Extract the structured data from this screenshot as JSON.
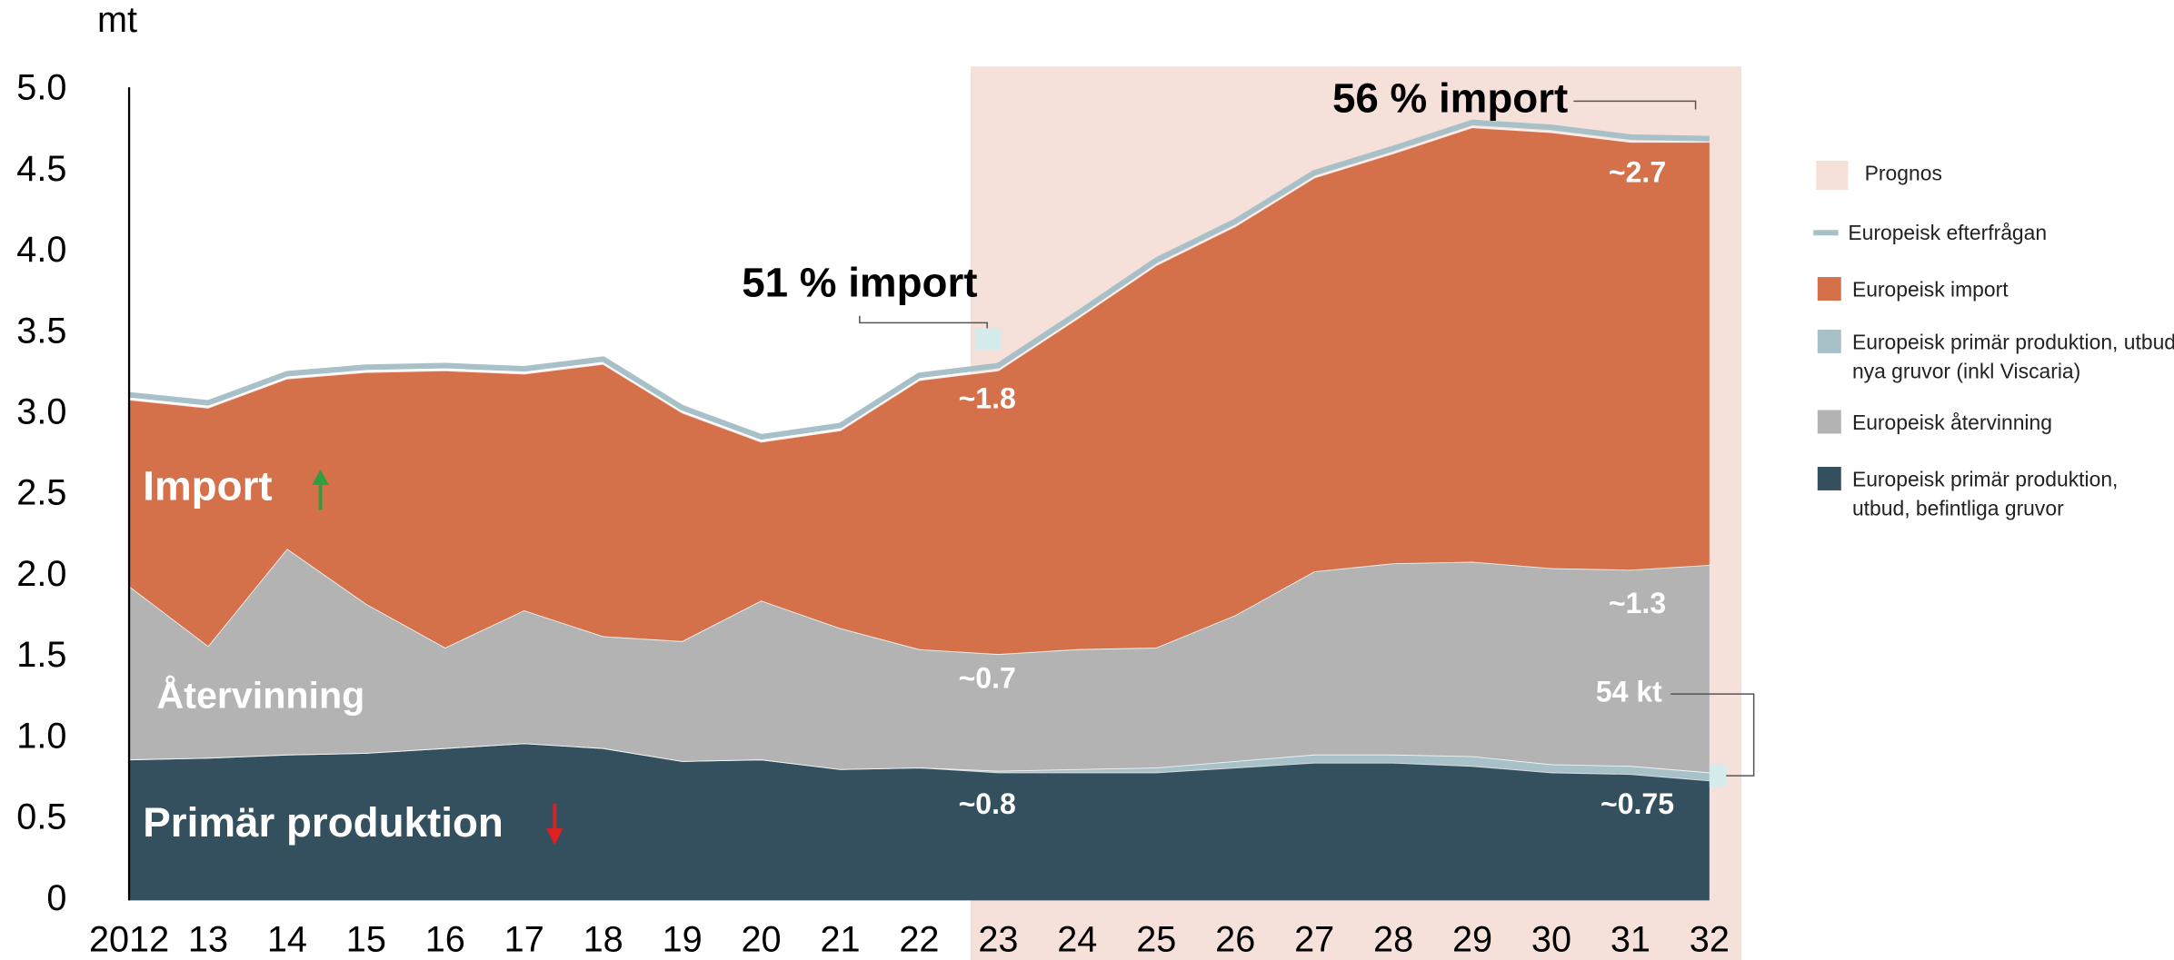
{
  "chart_data": {
    "type": "area",
    "y_label": "mt",
    "categories": [
      "2012",
      "13",
      "14",
      "15",
      "16",
      "17",
      "18",
      "19",
      "20",
      "21",
      "22",
      "23",
      "24",
      "25",
      "26",
      "27",
      "28",
      "29",
      "30",
      "31",
      "32"
    ],
    "ylim": [
      0,
      5.0
    ],
    "yticks": [
      0,
      0.5,
      {
        "value": 1.0,
        "label": "1.0"
      },
      1.5,
      {
        "value": 2.0,
        "label": "2.0"
      },
      2.5,
      {
        "value": 3.0,
        "label": "3.0"
      },
      3.5,
      {
        "value": 4.0,
        "label": "4.0"
      },
      4.5,
      {
        "value": 5.0,
        "label": "5.0"
      }
    ],
    "forecast_label": "Prognos",
    "forecast_color": "#f6e0da",
    "forecast_from": "23",
    "series": [
      {
        "name": "Europeisk primär produktion, utbud, befintliga gruvor",
        "color": "#34505e",
        "values": [
          0.87,
          0.88,
          0.9,
          0.91,
          0.94,
          0.97,
          0.94,
          0.86,
          0.87,
          0.81,
          0.82,
          0.79,
          0.79,
          0.79,
          0.82,
          0.85,
          0.85,
          0.83,
          0.79,
          0.78,
          0.74
        ]
      },
      {
        "name": "Europeisk primär produktion, utbud,  nya gruvor (inkl Viscaria)",
        "color": "#a8c0c8",
        "values": [
          0,
          0,
          0,
          0,
          0,
          0,
          0,
          0,
          0,
          0,
          0,
          0.01,
          0.02,
          0.03,
          0.04,
          0.05,
          0.05,
          0.06,
          0.05,
          0.05,
          0.05
        ]
      },
      {
        "name": "Europeisk återvinning",
        "color": "#b3b3b3",
        "values": [
          1.07,
          0.69,
          1.27,
          0.92,
          0.62,
          0.82,
          0.69,
          0.74,
          0.98,
          0.87,
          0.73,
          0.72,
          0.74,
          0.74,
          0.9,
          1.13,
          1.18,
          1.2,
          1.21,
          1.21,
          1.28
        ]
      },
      {
        "name": "Europeisk import",
        "color": "#d4704a",
        "values": [
          1.15,
          1.47,
          1.05,
          1.43,
          1.71,
          1.46,
          1.68,
          1.41,
          0.98,
          1.22,
          1.66,
          1.75,
          2.04,
          2.36,
          2.4,
          2.43,
          2.53,
          2.68,
          2.69,
          2.64,
          2.61
        ]
      },
      {
        "name": "Europeisk efterfrågan",
        "color": "#a8c0c8",
        "type": "line",
        "values": [
          3.12,
          3.07,
          3.25,
          3.29,
          3.3,
          3.28,
          3.34,
          3.04,
          2.86,
          2.93,
          3.24,
          3.3,
          3.62,
          3.95,
          4.19,
          4.49,
          4.64,
          4.8,
          4.77,
          4.71,
          4.7
        ]
      }
    ],
    "annotations": [
      "51 % import",
      "56 % import",
      "~1.8",
      "~0.7",
      "~0.8",
      "~2.7",
      "~1.3",
      "54 kt",
      "~0.75",
      "Import",
      "Återvinning",
      "Primär produktion"
    ]
  }
}
